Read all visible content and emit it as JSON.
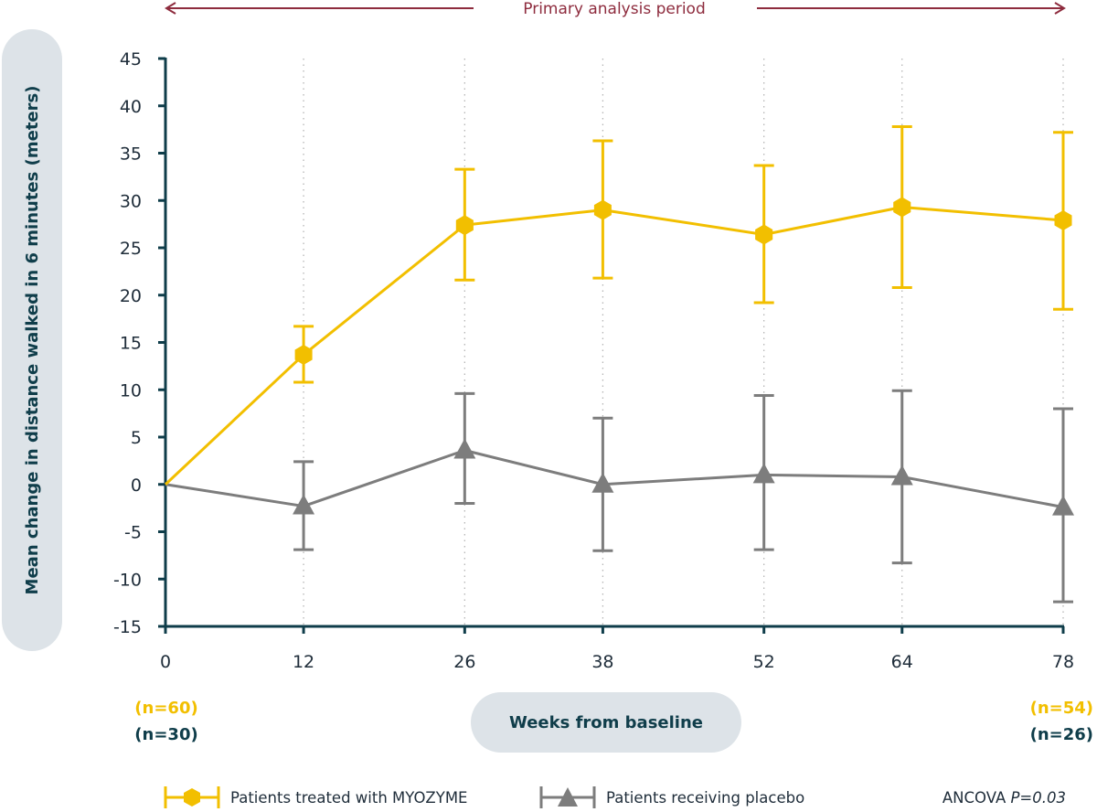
{
  "colors": {
    "treated": "#f2bf00",
    "placebo": "#7d7d7d",
    "axis": "#0f3d4a",
    "period": "#8e2c3e",
    "label_bg": "#dde3e8"
  },
  "annotations": {
    "period": "Primary analysis period",
    "n_start_treated": "(n=60)",
    "n_start_placebo": "(n=30)",
    "n_end_treated": "(n=54)",
    "n_end_placebo": "(n=26)",
    "stat_prefix": "ANCOVA ",
    "stat_value": "P=0.03"
  },
  "legend": {
    "treated": "Patients treated with MYOZYME",
    "placebo": "Patients receiving placebo"
  },
  "chart_data": {
    "type": "line",
    "xlabel": "Weeks from baseline",
    "ylabel": "Mean change in distance walked in 6 minutes (meters)",
    "x": [
      0,
      12,
      26,
      38,
      52,
      64,
      78
    ],
    "xticks": [
      "0",
      "12",
      "26",
      "38",
      "52",
      "64",
      "78"
    ],
    "ylim": [
      -15,
      45
    ],
    "yticks": [
      "45",
      "40",
      "35",
      "30",
      "25",
      "20",
      "15",
      "10",
      "5",
      "0",
      "-5",
      "-10",
      "-15"
    ],
    "grid": "vertical dotted at data weeks",
    "series": [
      {
        "name": "Patients treated with MYOZYME",
        "marker": "hexagon",
        "values": [
          0,
          13.7,
          27.4,
          29.0,
          26.4,
          29.3,
          27.9
        ],
        "upper": [
          null,
          16.7,
          33.3,
          36.3,
          33.7,
          37.8,
          37.2
        ],
        "lower": [
          null,
          10.8,
          21.6,
          21.8,
          19.2,
          20.8,
          18.5
        ]
      },
      {
        "name": "Patients receiving placebo",
        "marker": "triangle",
        "values": [
          0,
          -2.3,
          3.6,
          0,
          1.0,
          0.8,
          -2.4
        ],
        "upper": [
          null,
          2.4,
          9.6,
          7.0,
          9.4,
          9.9,
          8.0
        ],
        "lower": [
          null,
          -6.9,
          -2.0,
          -7.0,
          -6.9,
          -8.3,
          -12.4
        ]
      }
    ]
  }
}
